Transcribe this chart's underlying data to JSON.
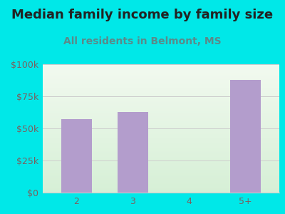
{
  "title": "Median family income by family size",
  "subtitle": "All residents in Belmont, MS",
  "categories": [
    "2",
    "3",
    "4",
    "5+"
  ],
  "values": [
    57000,
    63000,
    0,
    88000
  ],
  "bar_color": "#b39dcc",
  "background_color": "#00e8e8",
  "plot_bg_color_topleft": "#e8f5e8",
  "plot_bg_color_topright": "#f5f8f0",
  "plot_bg_color_bottom": "#d8f0d8",
  "title_color": "#222222",
  "subtitle_color": "#5a8a8a",
  "tick_color": "#7a6060",
  "grid_color": "#cccccc",
  "ylim": [
    0,
    100000
  ],
  "yticks": [
    0,
    25000,
    50000,
    75000,
    100000
  ],
  "ytick_labels": [
    "$0",
    "$25k",
    "$50k",
    "$75k",
    "$100k"
  ],
  "title_fontsize": 13,
  "subtitle_fontsize": 10,
  "tick_fontsize": 9,
  "bar_width": 0.55
}
